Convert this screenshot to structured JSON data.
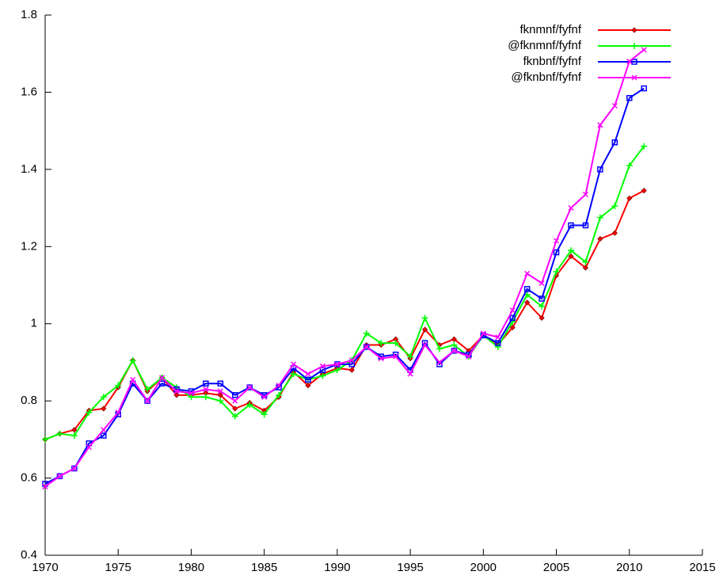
{
  "chart_data": {
    "type": "line",
    "x": [
      1970,
      1971,
      1972,
      1973,
      1974,
      1975,
      1976,
      1977,
      1978,
      1979,
      1980,
      1981,
      1982,
      1983,
      1984,
      1985,
      1986,
      1987,
      1988,
      1989,
      1990,
      1991,
      1992,
      1993,
      1994,
      1995,
      1996,
      1997,
      1998,
      1999,
      2000,
      2001,
      2002,
      2003,
      2004,
      2005,
      2006,
      2007,
      2008,
      2009,
      2010,
      2011
    ],
    "series": [
      {
        "name": "fknmnf/fyfnf",
        "color": "#ff0000",
        "marker": "diamond",
        "values": [
          0.7,
          0.715,
          0.725,
          0.775,
          0.78,
          0.835,
          0.905,
          0.825,
          0.86,
          0.815,
          0.815,
          0.82,
          0.815,
          0.78,
          0.795,
          0.775,
          0.81,
          0.875,
          0.84,
          0.87,
          0.885,
          0.88,
          0.945,
          0.945,
          0.96,
          0.91,
          0.985,
          0.945,
          0.96,
          0.93,
          0.97,
          0.945,
          0.99,
          1.055,
          1.015,
          1.125,
          1.175,
          1.145,
          1.22,
          1.235,
          1.325,
          1.345
        ]
      },
      {
        "name": "@fknmnf/fyfnf",
        "color": "#00ff00",
        "marker": "plus",
        "values": [
          0.7,
          0.715,
          0.71,
          0.77,
          0.81,
          0.84,
          0.905,
          0.83,
          0.86,
          0.835,
          0.81,
          0.81,
          0.8,
          0.76,
          0.79,
          0.765,
          0.815,
          0.87,
          0.855,
          0.865,
          0.88,
          0.905,
          0.975,
          0.95,
          0.95,
          0.915,
          1.015,
          0.935,
          0.945,
          0.915,
          0.97,
          0.94,
          1.005,
          1.075,
          1.045,
          1.135,
          1.19,
          1.16,
          1.275,
          1.305,
          1.41,
          1.46
        ]
      },
      {
        "name": "fknbnf/fyfnf",
        "color": "#0000ff",
        "marker": "square",
        "values": [
          0.585,
          0.605,
          0.625,
          0.69,
          0.71,
          0.765,
          0.845,
          0.8,
          0.845,
          0.83,
          0.825,
          0.845,
          0.845,
          0.815,
          0.835,
          0.815,
          0.835,
          0.885,
          0.855,
          0.88,
          0.895,
          0.895,
          0.94,
          0.915,
          0.92,
          0.88,
          0.95,
          0.895,
          0.93,
          0.92,
          0.97,
          0.95,
          1.015,
          1.09,
          1.065,
          1.185,
          1.255,
          1.255,
          1.4,
          1.47,
          1.585,
          1.61
        ]
      },
      {
        "name": "@fknbnf/fyfnf",
        "color": "#ff00ff",
        "marker": "cross",
        "values": [
          0.578,
          0.605,
          0.625,
          0.68,
          0.725,
          0.77,
          0.855,
          0.8,
          0.86,
          0.825,
          0.82,
          0.83,
          0.825,
          0.8,
          0.835,
          0.81,
          0.84,
          0.895,
          0.87,
          0.89,
          0.895,
          0.905,
          0.94,
          0.91,
          0.915,
          0.87,
          0.945,
          0.9,
          0.93,
          0.915,
          0.975,
          0.965,
          1.035,
          1.13,
          1.105,
          1.215,
          1.3,
          1.335,
          1.515,
          1.565,
          1.68,
          1.71
        ]
      }
    ],
    "xlim": [
      1970,
      2015
    ],
    "xticks": [
      1970,
      1975,
      1980,
      1985,
      1990,
      1995,
      2000,
      2005,
      2010,
      2015
    ],
    "ylim": [
      0.4,
      1.8
    ],
    "yticks": [
      0.4,
      0.6,
      0.8,
      1,
      1.2,
      1.4,
      1.6,
      1.8
    ],
    "grid": false,
    "legend": "upper right"
  }
}
